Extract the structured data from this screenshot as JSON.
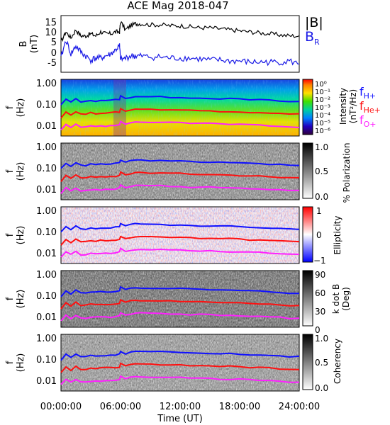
{
  "title": "ACE Mag 2018-047",
  "xlabel": "Time (UT)",
  "time_ticks": [
    "00:00:00",
    "06:00:00",
    "12:00:00",
    "18:00:00",
    "24:00:00"
  ],
  "freq_ticks": [
    "1.00",
    "0.10",
    "0.01"
  ],
  "legend": {
    "b_total": "|B|",
    "b_r": "B",
    "b_r_sub": "R",
    "h": "f",
    "h_sub": "H+",
    "he": "f",
    "he_sub": "He+",
    "o": "f",
    "o_sub": "O+"
  },
  "colors": {
    "b_total": "#000000",
    "b_r": "#1a1ae6",
    "f_h": "#1010ff",
    "f_he": "#ff1010",
    "f_o": "#ff20ff"
  },
  "panels": {
    "bfield": {
      "ylabel": "B",
      "yunit": "(nT)",
      "yticks": [
        "15",
        "10",
        "5",
        "0",
        "-5"
      ]
    },
    "intensity": {
      "ylabel": "f",
      "yunit": "(Hz)",
      "cbar_label_1": "Intensity",
      "cbar_label_2": "(nT²/Hz)",
      "cbar_ticks": [
        "10⁰",
        "10⁻¹",
        "10⁻²",
        "10⁻³",
        "10⁻⁴",
        "10⁻⁵",
        "10⁻⁶"
      ]
    },
    "polarization": {
      "ylabel": "f",
      "yunit": "(Hz)",
      "cbar_label_1": "% Polarization",
      "cbar_ticks": [
        "1.0",
        "0.5",
        "0.0"
      ]
    },
    "ellipticity": {
      "ylabel": "f",
      "yunit": "(Hz)",
      "cbar_label_1": "Ellipticity",
      "cbar_ticks": [
        "1",
        "0",
        "−1"
      ]
    },
    "kdotb": {
      "ylabel": "f",
      "yunit": "(Hz)",
      "cbar_label_1": "k dot B",
      "cbar_label_2": "(Deg)",
      "cbar_ticks": [
        "90",
        "60",
        "30",
        "0"
      ]
    },
    "coherency": {
      "ylabel": "f",
      "yunit": "(Hz)",
      "cbar_label_1": "Coherency",
      "cbar_ticks": [
        "1.0",
        "0.5",
        "0.0"
      ]
    }
  },
  "chart_data": [
    {
      "type": "line",
      "panel": "bfield",
      "xlim": [
        0,
        24
      ],
      "ylim": [
        -9,
        19
      ],
      "series": [
        {
          "name": "|B|",
          "x": [
            0,
            0.5,
            1,
            1.5,
            2,
            2.5,
            3,
            3.5,
            4,
            4.5,
            5,
            5.5,
            5.9,
            6.0,
            6.5,
            7,
            7.5,
            8,
            9,
            10,
            11,
            12,
            13,
            14,
            15,
            16,
            17,
            18,
            19,
            20,
            21,
            22,
            23,
            24
          ],
          "values": [
            6,
            11,
            8,
            12,
            9,
            9,
            10,
            9,
            11,
            10,
            10,
            11,
            11,
            16,
            12,
            14,
            15,
            15,
            14.5,
            14.5,
            14,
            14,
            13.5,
            13,
            13,
            12.5,
            12,
            11.5,
            11,
            10.5,
            10,
            9.5,
            9,
            9
          ]
        },
        {
          "name": "B",
          "x": [
            0,
            0.5,
            1,
            1.5,
            2,
            2.5,
            3,
            3.5,
            4,
            4.5,
            5,
            5.5,
            5.9,
            6.0,
            6.5,
            7,
            7.5,
            8,
            9,
            10,
            11,
            12,
            13,
            14,
            15,
            16,
            17,
            18,
            19,
            20,
            21,
            22,
            23,
            24
          ],
          "values": [
            -2,
            7,
            0,
            4,
            1,
            -1,
            -3,
            -2,
            -2,
            -1,
            0,
            2,
            4,
            -3,
            -2,
            -1,
            -1,
            -1,
            -1.5,
            -1.5,
            -2,
            -2,
            -2,
            -2.5,
            -3,
            -3,
            -3.5,
            -3.5,
            -4,
            -4,
            -4,
            -4,
            -3.5,
            -5
          ]
        }
      ]
    },
    {
      "type": "line",
      "panel": "spectral-overlays",
      "note_units": "Hz, log scale",
      "xlim": [
        0,
        24
      ],
      "ylim": [
        0.003,
        1.5
      ],
      "x": [
        0,
        0.5,
        1,
        1.5,
        2,
        2.5,
        3,
        3.5,
        4,
        4.5,
        5,
        5.5,
        5.9,
        6.0,
        6.5,
        7,
        7.5,
        8,
        9,
        10,
        11,
        12,
        13,
        14,
        15,
        16,
        17,
        18,
        19,
        20,
        21,
        22,
        23,
        24
      ],
      "series": [
        {
          "name": "H+",
          "values": [
            0.09,
            0.17,
            0.12,
            0.18,
            0.13,
            0.13,
            0.15,
            0.14,
            0.15,
            0.15,
            0.15,
            0.16,
            0.17,
            0.24,
            0.18,
            0.21,
            0.23,
            0.23,
            0.22,
            0.22,
            0.21,
            0.21,
            0.2,
            0.19,
            0.19,
            0.18,
            0.18,
            0.17,
            0.16,
            0.16,
            0.15,
            0.14,
            0.13,
            0.13
          ]
        },
        {
          "name": "He+",
          "values": [
            0.023,
            0.042,
            0.03,
            0.045,
            0.033,
            0.033,
            0.038,
            0.035,
            0.038,
            0.038,
            0.038,
            0.04,
            0.042,
            0.06,
            0.045,
            0.053,
            0.058,
            0.058,
            0.055,
            0.055,
            0.053,
            0.053,
            0.05,
            0.048,
            0.048,
            0.045,
            0.045,
            0.043,
            0.04,
            0.04,
            0.038,
            0.035,
            0.033,
            0.033
          ]
        },
        {
          "name": "O+",
          "values": [
            0.006,
            0.011,
            0.008,
            0.011,
            0.008,
            0.008,
            0.009,
            0.009,
            0.009,
            0.009,
            0.009,
            0.01,
            0.011,
            0.015,
            0.011,
            0.013,
            0.014,
            0.014,
            0.014,
            0.014,
            0.013,
            0.013,
            0.012,
            0.012,
            0.012,
            0.011,
            0.011,
            0.011,
            0.01,
            0.01,
            0.009,
            0.009,
            0.008,
            0.008
          ]
        }
      ]
    }
  ]
}
